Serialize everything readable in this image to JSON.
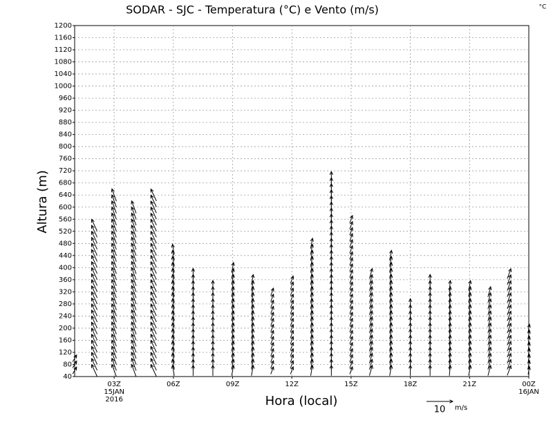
{
  "chart_data": {
    "type": "vector",
    "title": "SODAR - SJC - Temperatura (°C) e Vento (m/s)",
    "corner_label": "°C",
    "y_label": "Altura (m)",
    "x_label": "Hora (local)",
    "ylim": [
      40,
      1200
    ],
    "yticks": [
      40,
      80,
      120,
      160,
      200,
      240,
      280,
      320,
      360,
      400,
      440,
      480,
      520,
      560,
      600,
      640,
      680,
      720,
      760,
      800,
      840,
      880,
      920,
      960,
      1000,
      1040,
      1080,
      1120,
      1160,
      1200
    ],
    "xlim": [
      1,
      24
    ],
    "xticks": [
      {
        "value": 3,
        "label": "03Z"
      },
      {
        "value": 6,
        "label": "06Z"
      },
      {
        "value": 9,
        "label": "09Z"
      },
      {
        "value": 12,
        "label": "12Z"
      },
      {
        "value": 15,
        "label": "15Z"
      },
      {
        "value": 18,
        "label": "18Z"
      },
      {
        "value": 21,
        "label": "21Z"
      },
      {
        "value": 24,
        "label": "00Z"
      }
    ],
    "x_sublabels": [
      {
        "value": 3,
        "label": "15JAN"
      },
      {
        "value": 3,
        "label": "2016"
      },
      {
        "value": 24,
        "label": "16JAN"
      }
    ],
    "grid": true,
    "reference_vector": 10,
    "reference_unit": "m/s",
    "columns": [
      {
        "x": 1,
        "top": 100,
        "speed": 3,
        "direction": 30
      },
      {
        "x": 2,
        "top": 550,
        "speed": 5,
        "direction": -25
      },
      {
        "x": 3,
        "top": 640,
        "speed": 5,
        "direction": -20
      },
      {
        "x": 4,
        "top": 610,
        "speed": 5,
        "direction": -20
      },
      {
        "x": 5,
        "top": 640,
        "speed": 5,
        "direction": -25
      },
      {
        "x": 6,
        "top": 460,
        "speed": 4,
        "direction": -10
      },
      {
        "x": 7,
        "top": 380,
        "speed": 4,
        "direction": 0
      },
      {
        "x": 8,
        "top": 350,
        "speed": 4,
        "direction": 0
      },
      {
        "x": 9,
        "top": 400,
        "speed": 4,
        "direction": 10
      },
      {
        "x": 10,
        "top": 360,
        "speed": 4,
        "direction": 10
      },
      {
        "x": 11,
        "top": 320,
        "speed": 3,
        "direction": 20
      },
      {
        "x": 12,
        "top": 360,
        "speed": 3,
        "direction": 20
      },
      {
        "x": 13,
        "top": 480,
        "speed": 4,
        "direction": 10
      },
      {
        "x": 14,
        "top": 700,
        "speed": 4,
        "direction": 0
      },
      {
        "x": 15,
        "top": 560,
        "speed": 3,
        "direction": 20
      },
      {
        "x": 16,
        "top": 380,
        "speed": 4,
        "direction": 15
      },
      {
        "x": 17,
        "top": 440,
        "speed": 4,
        "direction": 10
      },
      {
        "x": 18,
        "top": 290,
        "speed": 4,
        "direction": 0
      },
      {
        "x": 19,
        "top": 360,
        "speed": 4,
        "direction": 0
      },
      {
        "x": 20,
        "top": 340,
        "speed": 4,
        "direction": 5
      },
      {
        "x": 21,
        "top": 350,
        "speed": 4,
        "direction": 10
      },
      {
        "x": 22,
        "top": 320,
        "speed": 4,
        "direction": 15
      },
      {
        "x": 23,
        "top": 380,
        "speed": 4,
        "direction": 20
      },
      {
        "x": 24,
        "top": 200,
        "speed": 3,
        "direction": 10
      }
    ]
  }
}
